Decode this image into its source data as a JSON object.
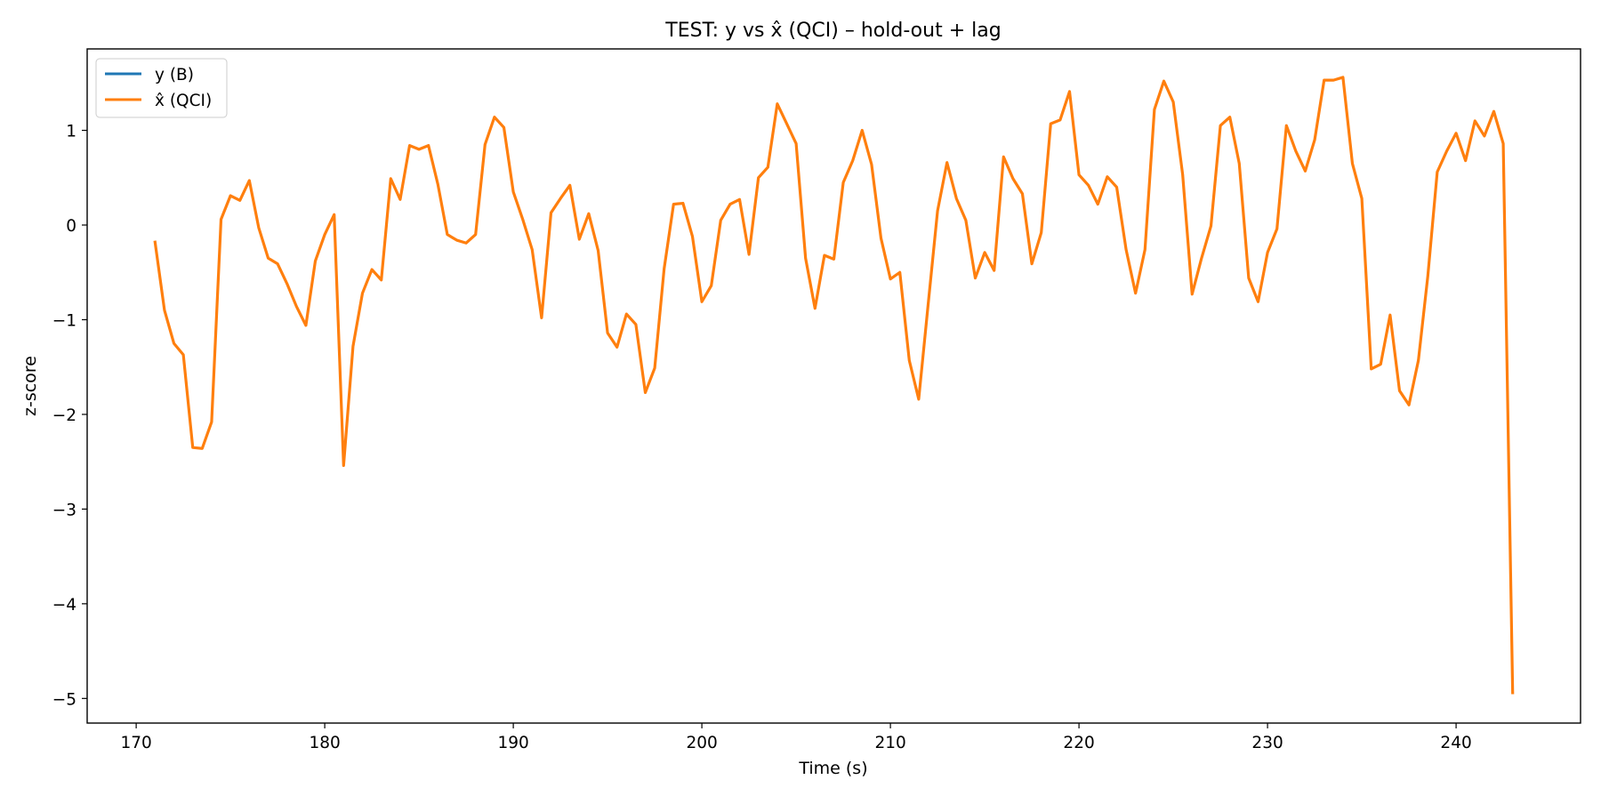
{
  "chart_data": {
    "type": "line",
    "title": "TEST: y vs x̂ (QCI) – hold-out + lag",
    "xlabel": "Time (s)",
    "ylabel": "z-score",
    "xlim": [
      167.4,
      246.6
    ],
    "ylim": [
      -5.26,
      1.86
    ],
    "xticks": [
      170,
      180,
      190,
      200,
      210,
      220,
      230,
      240
    ],
    "xtick_labels": [
      "170",
      "180",
      "190",
      "200",
      "210",
      "220",
      "230",
      "240"
    ],
    "yticks": [
      1,
      0,
      -1,
      -2,
      -3,
      -4,
      -5
    ],
    "ytick_labels": [
      "1",
      "0",
      "−1",
      "−2",
      "−3",
      "−4",
      "−5"
    ],
    "grid": false,
    "legend_position": "top-left",
    "series": [
      {
        "name": "y (B)",
        "color": "#1f77b4",
        "x": [],
        "values": []
      },
      {
        "name": "x̂ (QCI)",
        "color": "#ff7f0e",
        "x": [
          171.0,
          171.5,
          172.0,
          172.5,
          173.0,
          173.5,
          174.0,
          174.5,
          175.0,
          175.5,
          176.0,
          176.5,
          177.0,
          177.5,
          178.0,
          178.5,
          179.0,
          179.5,
          180.0,
          180.5,
          181.0,
          181.5,
          182.0,
          182.5,
          183.0,
          183.5,
          184.0,
          184.5,
          185.0,
          185.5,
          186.0,
          186.5,
          187.0,
          187.5,
          188.0,
          188.5,
          189.0,
          189.5,
          190.0,
          190.5,
          191.0,
          191.5,
          192.0,
          192.5,
          193.0,
          193.5,
          194.0,
          194.5,
          195.0,
          195.5,
          196.0,
          196.5,
          197.0,
          197.5,
          198.0,
          198.5,
          199.0,
          199.5,
          200.0,
          200.5,
          201.0,
          201.5,
          202.0,
          202.5,
          203.0,
          203.5,
          204.0,
          204.5,
          205.0,
          205.5,
          206.0,
          206.5,
          207.0,
          207.5,
          208.0,
          208.5,
          209.0,
          209.5,
          210.0,
          210.5,
          211.0,
          211.5,
          212.0,
          212.5,
          213.0,
          213.5,
          214.0,
          214.5,
          215.0,
          215.5,
          216.0,
          216.5,
          217.0,
          217.5,
          218.0,
          218.5,
          219.0,
          219.5,
          220.0,
          220.5,
          221.0,
          221.5,
          222.0,
          222.5,
          223.0,
          223.5,
          224.0,
          224.5,
          225.0,
          225.5,
          226.0,
          226.5,
          227.0,
          227.5,
          228.0,
          228.5,
          229.0,
          229.5,
          230.0,
          230.5,
          231.0,
          231.5,
          232.0,
          232.5,
          233.0,
          233.5,
          234.0,
          234.5,
          235.0,
          235.5,
          236.0,
          236.5,
          237.0,
          237.5,
          238.0,
          238.5,
          239.0,
          239.5,
          240.0,
          240.5,
          241.0,
          241.5,
          242.0,
          242.5,
          243.0
        ],
        "values": [
          -0.18,
          -0.9,
          -1.25,
          -1.37,
          -2.35,
          -2.36,
          -2.08,
          0.06,
          0.31,
          0.26,
          0.47,
          -0.03,
          -0.35,
          -0.41,
          -0.62,
          -0.86,
          -1.06,
          -0.38,
          -0.1,
          0.11,
          -2.54,
          -1.28,
          -0.72,
          -0.47,
          -0.58,
          0.49,
          0.27,
          0.84,
          0.8,
          0.84,
          0.43,
          -0.1,
          -0.16,
          -0.19,
          -0.1,
          0.85,
          1.14,
          1.03,
          0.35,
          0.06,
          -0.26,
          -0.98,
          0.13,
          0.28,
          0.42,
          -0.15,
          0.12,
          -0.27,
          -1.14,
          -1.29,
          -0.94,
          -1.05,
          -1.77,
          -1.51,
          -0.46,
          0.22,
          0.23,
          -0.12,
          -0.81,
          -0.64,
          0.05,
          0.22,
          0.27,
          -0.31,
          0.5,
          0.61,
          1.28,
          1.07,
          0.86,
          -0.35,
          -0.88,
          -0.32,
          -0.36,
          0.45,
          0.68,
          1.0,
          0.64,
          -0.14,
          -0.57,
          -0.5,
          -1.43,
          -1.84,
          -0.84,
          0.15,
          0.66,
          0.28,
          0.05,
          -0.56,
          -0.29,
          -0.48,
          0.72,
          0.49,
          0.33,
          -0.41,
          -0.08,
          1.07,
          1.11,
          1.41,
          0.53,
          0.42,
          0.22,
          0.51,
          0.4,
          -0.26,
          -0.72,
          -0.26,
          1.22,
          1.52,
          1.3,
          0.53,
          -0.73,
          -0.35,
          -0.01,
          1.05,
          1.14,
          0.65,
          -0.56,
          -0.81,
          -0.29,
          -0.04,
          1.05,
          0.78,
          0.57,
          0.9,
          1.53,
          1.53,
          1.56,
          0.65,
          0.28,
          -1.52,
          -1.47,
          -0.95,
          -1.75,
          -1.9,
          -1.43,
          -0.54,
          0.56,
          0.78,
          0.97,
          0.68,
          1.1,
          0.94,
          1.2,
          0.86,
          -4.94
        ]
      }
    ]
  }
}
